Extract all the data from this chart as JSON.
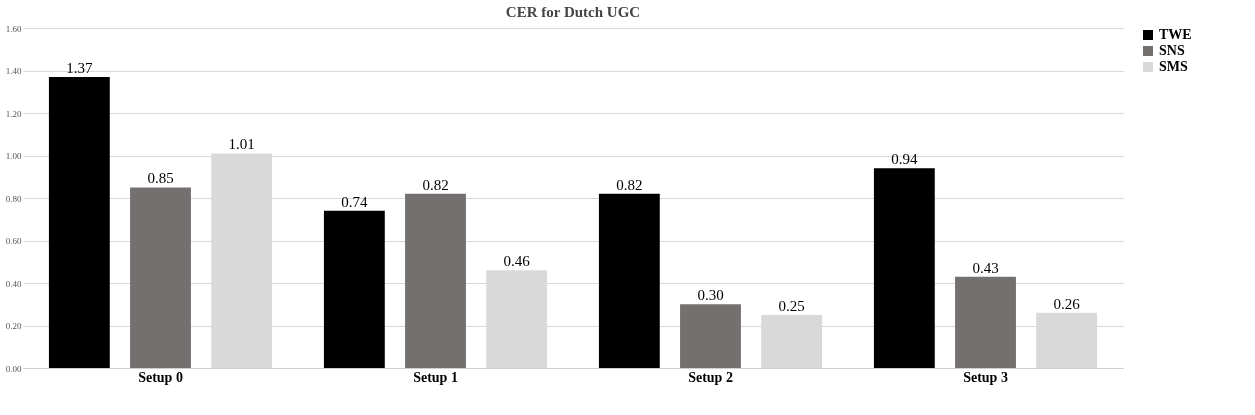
{
  "chart_data": {
    "type": "bar",
    "title": "CER for Dutch UGC",
    "categories": [
      "Setup 0",
      "Setup 1",
      "Setup 2",
      "Setup 3"
    ],
    "series": [
      {
        "name": "TWE",
        "color": "#000000",
        "values": [
          1.37,
          0.74,
          0.82,
          0.94
        ],
        "value_labels": [
          "1.37",
          "0.74",
          "0.82",
          "0.94"
        ]
      },
      {
        "name": "SNS",
        "color": "#757070",
        "values": [
          0.85,
          0.82,
          0.3,
          0.43
        ],
        "value_labels": [
          "0.85",
          "0.82",
          "0.30",
          "0.43"
        ]
      },
      {
        "name": "SMS",
        "color": "#d9d9d9",
        "values": [
          1.01,
          0.46,
          0.25,
          0.26
        ],
        "value_labels": [
          "1.01",
          "0.46",
          "0.25",
          "0.26"
        ]
      }
    ],
    "ylim": [
      0,
      1.6
    ],
    "yticks": [
      {
        "value": 0,
        "label": "0.00"
      },
      {
        "value": 0.2,
        "label": "0.20"
      },
      {
        "value": 0.4,
        "label": "0.40"
      },
      {
        "value": 0.6,
        "label": "0.60"
      },
      {
        "value": 0.8,
        "label": "0.80"
      },
      {
        "value": 1.0,
        "label": "1.00"
      },
      {
        "value": 1.2,
        "label": "1.20"
      },
      {
        "value": 1.4,
        "label": "1.40"
      },
      {
        "value": 1.6,
        "label": "1.60"
      }
    ],
    "grid": "y",
    "legend": "right"
  }
}
